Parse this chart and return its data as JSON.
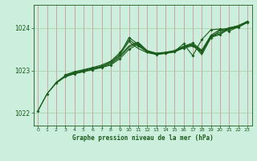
{
  "bg_color": "#cceedd",
  "grid_color_v": "#cc8888",
  "grid_color_h": "#aaccaa",
  "line_color": "#1a5c1a",
  "title": "Graphe pression niveau de la mer (hPa)",
  "xlim": [
    -0.5,
    23.5
  ],
  "ylim": [
    1021.7,
    1024.55
  ],
  "yticks": [
    1022,
    1023,
    1024
  ],
  "xticks": [
    0,
    1,
    2,
    3,
    4,
    5,
    6,
    7,
    8,
    9,
    10,
    11,
    12,
    13,
    14,
    15,
    16,
    17,
    18,
    19,
    20,
    21,
    22,
    23
  ],
  "lines": [
    {
      "x": [
        0,
        1,
        2,
        3,
        4,
        5,
        6,
        7,
        8,
        9,
        10,
        11,
        12,
        13,
        14,
        15,
        16,
        17,
        18,
        19,
        20,
        21,
        22,
        23
      ],
      "y": [
        1022.05,
        1022.45,
        1022.7,
        1022.85,
        1022.92,
        1022.97,
        1023.02,
        1023.07,
        1023.13,
        1023.28,
        1023.5,
        1023.62,
        1023.44,
        1023.38,
        1023.41,
        1023.44,
        1023.53,
        1023.58,
        1023.42,
        1023.78,
        1023.85,
        1023.98,
        1024.02,
        1024.13
      ],
      "marker": true,
      "lw": 0.8
    },
    {
      "x": [
        0,
        1,
        2,
        3,
        4,
        5,
        6,
        7,
        8,
        9,
        10,
        11,
        12,
        13,
        14,
        15,
        16,
        17,
        18,
        19,
        20,
        21,
        22,
        23
      ],
      "y": [
        1022.05,
        1022.45,
        1022.72,
        1022.87,
        1022.93,
        1022.98,
        1023.03,
        1023.08,
        1023.15,
        1023.32,
        1023.55,
        1023.65,
        1023.46,
        1023.4,
        1023.42,
        1023.46,
        1023.55,
        1023.6,
        1023.44,
        1023.8,
        1023.87,
        1024.0,
        1024.04,
        1024.14
      ],
      "marker": false,
      "lw": 0.8
    },
    {
      "x": [
        2,
        3,
        4,
        5,
        6,
        7,
        8,
        9,
        10,
        11,
        12,
        13,
        14,
        15,
        16,
        17,
        18,
        19,
        20,
        21,
        22,
        23
      ],
      "y": [
        1022.72,
        1022.88,
        1022.95,
        1023.0,
        1023.05,
        1023.1,
        1023.18,
        1023.35,
        1023.58,
        1023.67,
        1023.47,
        1023.41,
        1023.43,
        1023.47,
        1023.57,
        1023.62,
        1023.46,
        1023.82,
        1023.9,
        1024.01,
        1024.05,
        1024.15
      ],
      "marker": false,
      "lw": 0.8
    },
    {
      "x": [
        3,
        4,
        5,
        6,
        7,
        8,
        9,
        10,
        11,
        12,
        13,
        14,
        15,
        16,
        17,
        18,
        19,
        20,
        21,
        22,
        23
      ],
      "y": [
        1022.9,
        1022.97,
        1023.02,
        1023.07,
        1023.13,
        1023.22,
        1023.42,
        1023.72,
        1023.58,
        1023.44,
        1023.4,
        1023.42,
        1023.46,
        1023.57,
        1023.65,
        1023.48,
        1023.83,
        1023.97,
        1024.0,
        1024.06,
        1024.16
      ],
      "marker": true,
      "lw": 0.8
    },
    {
      "x": [
        3,
        4,
        5,
        6,
        7,
        8,
        9,
        10,
        11,
        12,
        13,
        14,
        15,
        16,
        17,
        18,
        19,
        20,
        21,
        22,
        23
      ],
      "y": [
        1022.88,
        1022.95,
        1023.0,
        1023.05,
        1023.1,
        1023.2,
        1023.38,
        1023.68,
        1023.52,
        1023.42,
        1023.38,
        1023.4,
        1023.44,
        1023.55,
        1023.62,
        1023.37,
        1023.77,
        1023.95,
        1023.97,
        1024.04,
        1024.14
      ],
      "marker": false,
      "lw": 0.8
    },
    {
      "x": [
        9,
        10,
        11,
        12,
        13,
        14,
        15,
        16,
        17,
        18,
        19,
        20,
        21,
        22,
        23
      ],
      "y": [
        1023.38,
        1023.78,
        1023.62,
        1023.44,
        1023.39,
        1023.41,
        1023.45,
        1023.63,
        1023.35,
        1023.73,
        1023.96,
        1023.98,
        1023.93,
        1024.03,
        1024.16
      ],
      "marker": true,
      "lw": 0.8
    }
  ]
}
